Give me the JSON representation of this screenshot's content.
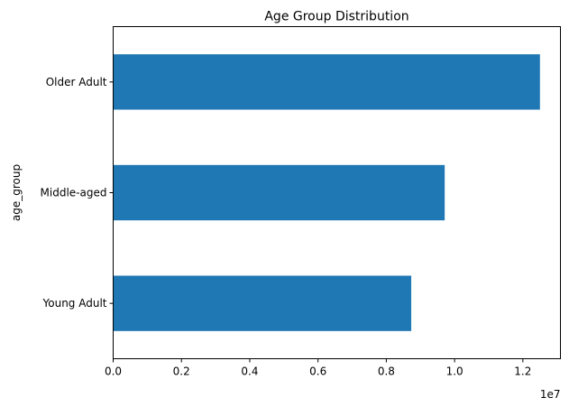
{
  "chart_data": {
    "type": "bar",
    "orientation": "horizontal",
    "title": "Age Group Distribution",
    "xlabel": "",
    "ylabel": "age_group",
    "categories": [
      "Young Adult",
      "Middle-aged",
      "Older Adult"
    ],
    "values": [
      8730000,
      9710000,
      12500000
    ],
    "xlim": [
      0,
      13100000
    ],
    "x_ticks": [
      0,
      2000000,
      4000000,
      6000000,
      8000000,
      10000000,
      12000000
    ],
    "x_tick_labels": [
      "0.0",
      "0.2",
      "0.4",
      "0.6",
      "0.8",
      "1.0",
      "1.2"
    ],
    "x_offset_label": "1e7",
    "bar_color": "#1f77b4",
    "grid": false
  }
}
